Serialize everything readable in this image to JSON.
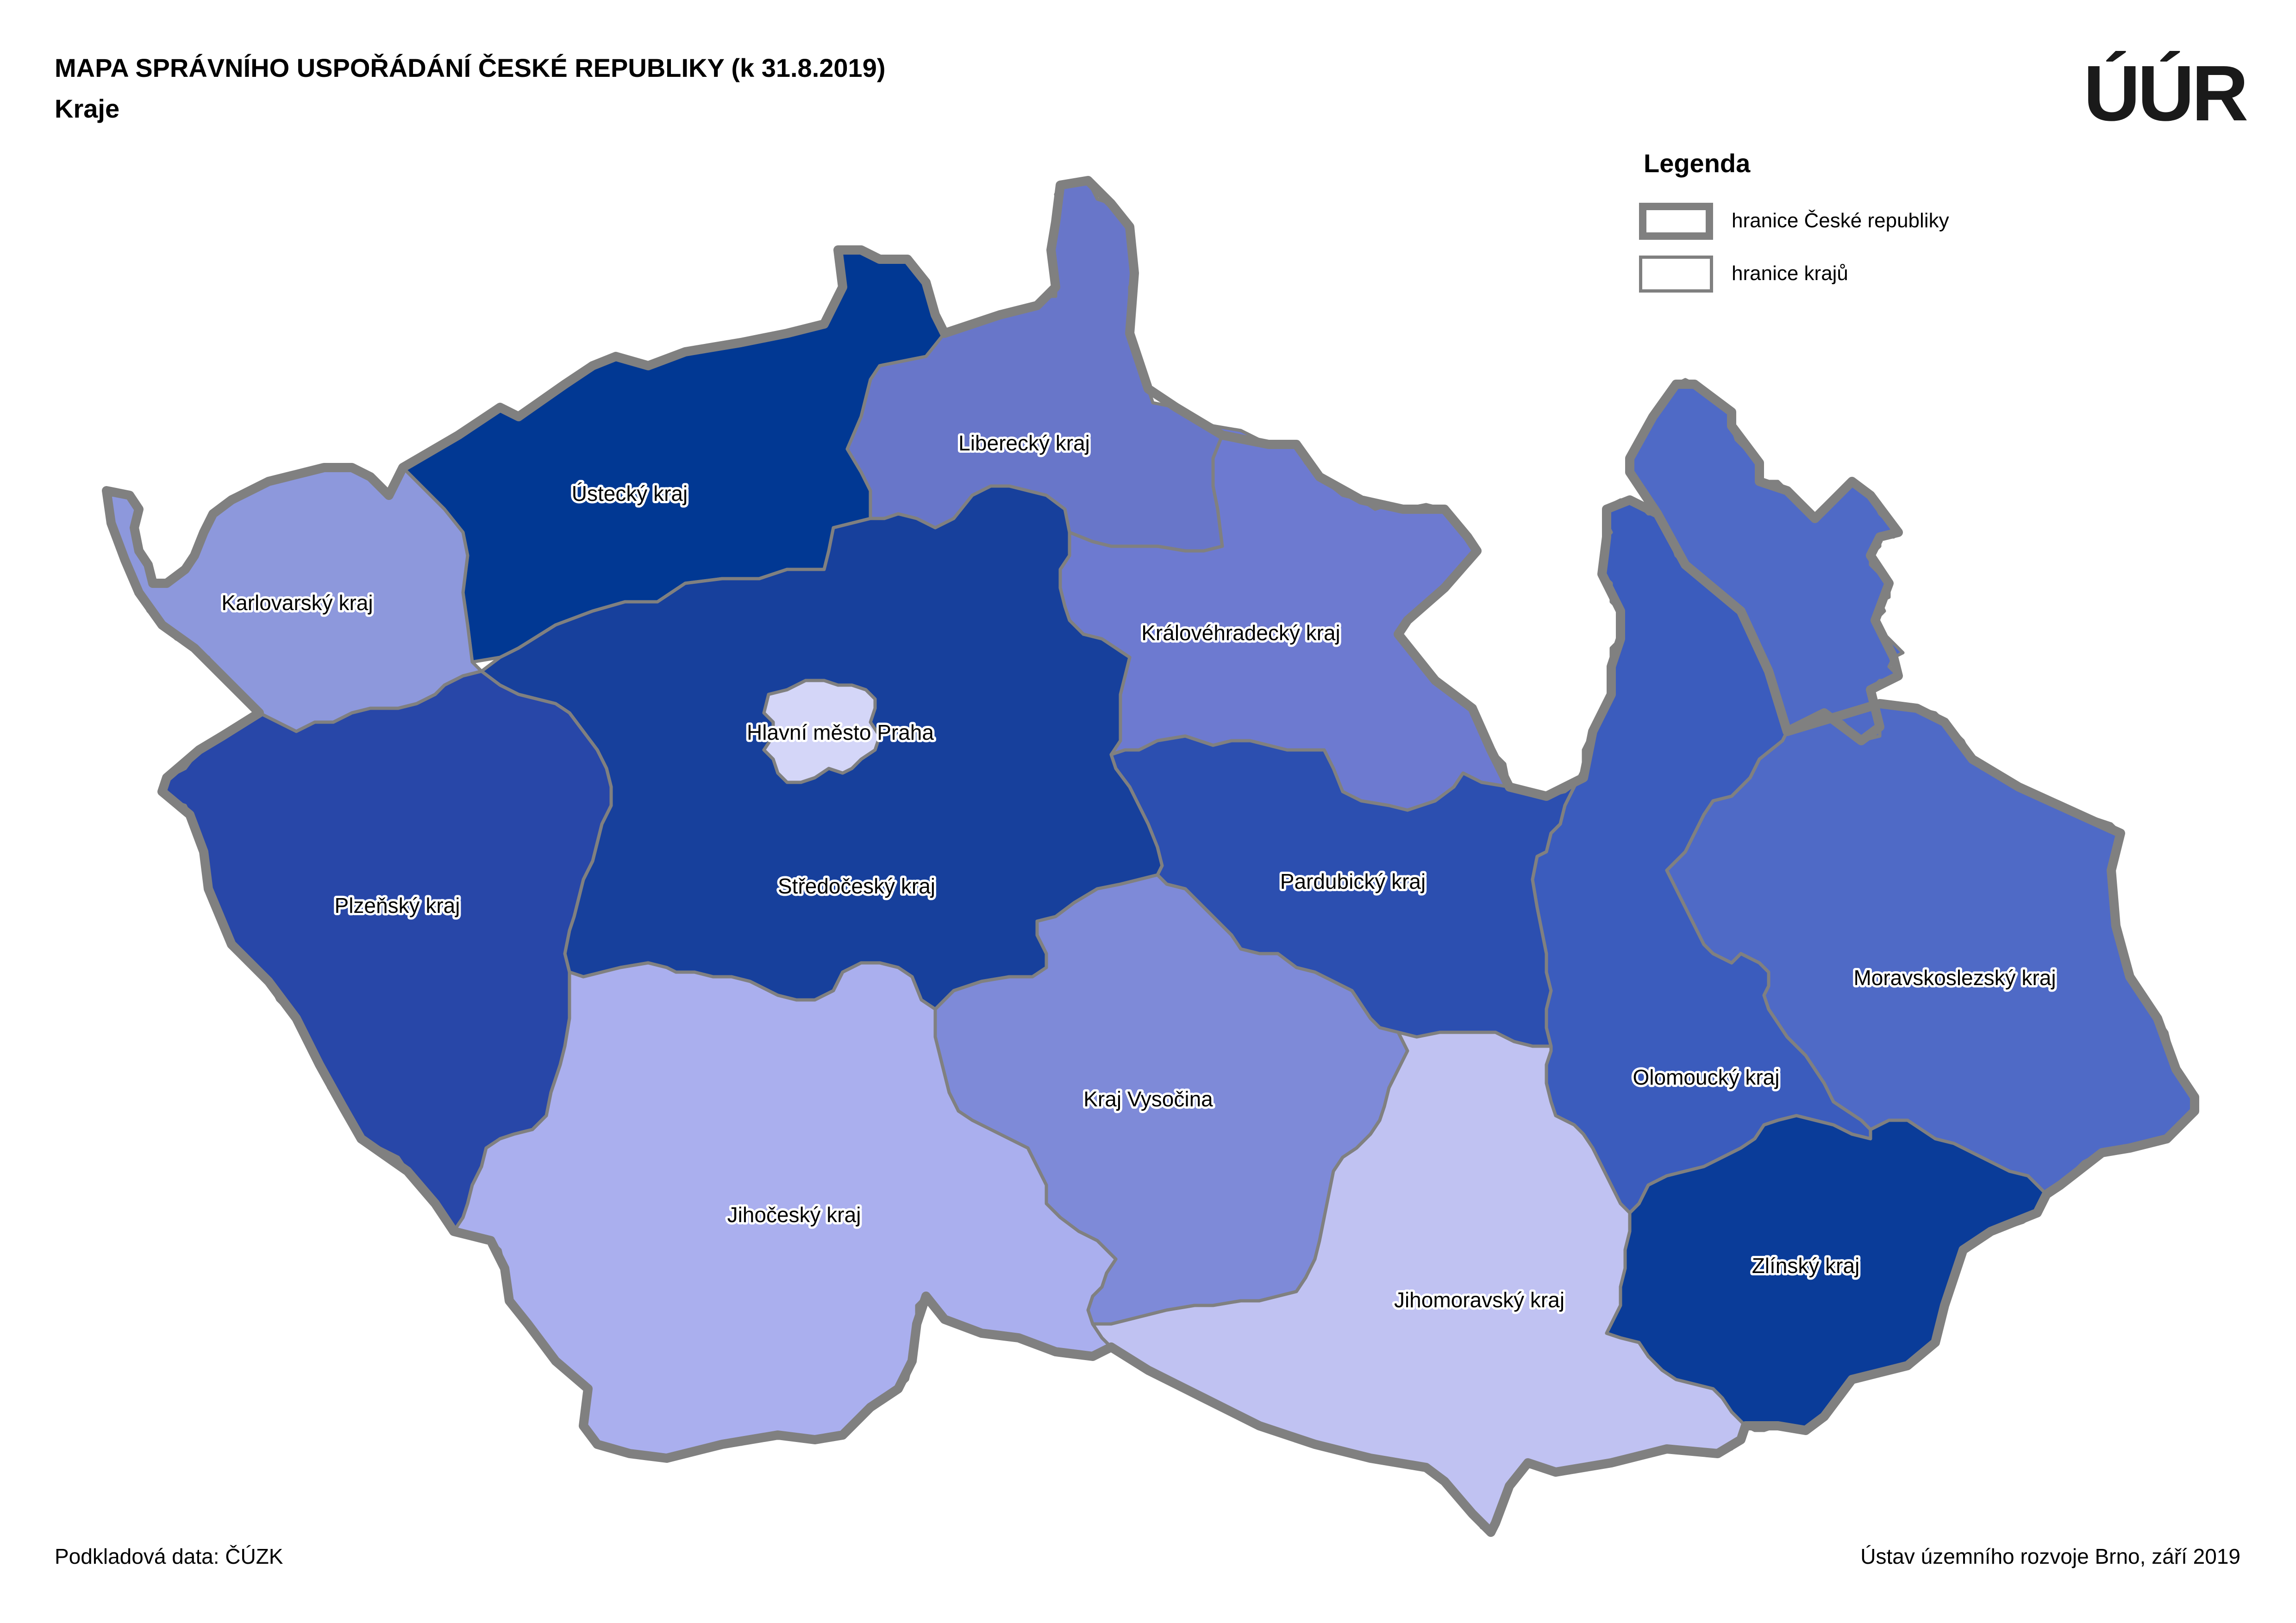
{
  "title": "MAPA SPRÁVNÍHO USPOŘÁDÁNÍ ČESKÉ REPUBLIKY (k 31.8.2019)",
  "subtitle": "Kraje",
  "logo_text": "ÚÚR",
  "legend": {
    "title": "Legenda",
    "items": [
      {
        "label": "hranice České republiky"
      },
      {
        "label": "hranice krajů"
      }
    ]
  },
  "colors": {
    "border": "#808080",
    "ustecky": "#013893",
    "liberecky": "#6876c9",
    "kralovehradecky": "#6d7ad0",
    "karlovarsky": "#8d98dc",
    "stredocesky": "#17409c",
    "praha": "#d4d6f8",
    "plzensky": "#2847a8",
    "pardubicky": "#2c4fb0",
    "olomoucky": "#3b5cbd",
    "moravskoslezsky": "#4f6ac6",
    "vysocina": "#7e8ad8",
    "jihocesky": "#aaafee",
    "jihomoravsky": "#c0c2f2",
    "zlinsky": "#0a3c99"
  },
  "regions": {
    "ustecky": "Ústecký kraj",
    "liberecky": "Liberecký kraj",
    "karlovarsky": "Karlovarský kraj",
    "kralovehradecky": "Královéhradecký kraj",
    "praha": "Hlavní město Praha",
    "stredocesky": "Středočeský kraj",
    "plzensky": "Plzeňský kraj",
    "pardubicky": "Pardubický kraj",
    "moravskoslezsky": "Moravskoslezský kraj",
    "vysocina": "Kraj Vysočina",
    "olomoucky": "Olomoucký kraj",
    "jihocesky": "Jihočeský kraj",
    "jihomoravsky": "Jihomoravský kraj",
    "zlinsky": "Zlínský kraj"
  },
  "footer": {
    "source": "Podkladová data: ČÚZK",
    "credit": "Ústav územního rozvoje Brno, září 2019"
  }
}
